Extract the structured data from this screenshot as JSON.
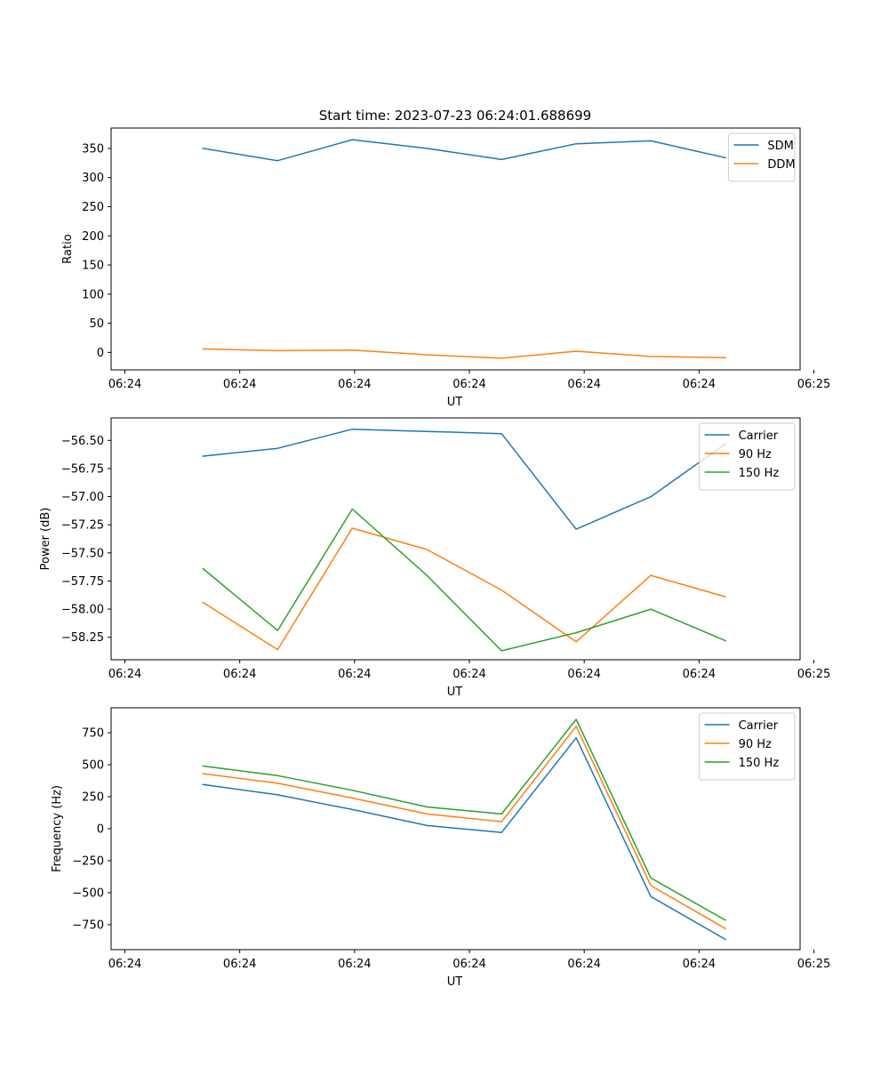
{
  "figure_title": "Start time: 2023-07-23 06:24:01.688699",
  "chart_data": [
    {
      "type": "line",
      "title": "Start time: 2023-07-23 06:24:01.688699",
      "xlabel": "UT",
      "ylabel": "Ratio",
      "x": [
        1.8,
        2.45,
        3.1,
        3.75,
        4.4,
        5.05,
        5.7,
        6.35
      ],
      "xlim": [
        1.0,
        7.0
      ],
      "x_ticks": [
        1.12,
        2.12,
        3.12,
        4.12,
        5.12,
        6.12,
        7.12
      ],
      "x_tick_labels": [
        "06:24",
        "06:24",
        "06:24",
        "06:24",
        "06:24",
        "06:24",
        "06:25"
      ],
      "ylim": [
        -30,
        385
      ],
      "y_ticks": [
        0,
        50,
        100,
        150,
        200,
        250,
        300,
        350
      ],
      "y_tick_labels": [
        "0",
        "50",
        "100",
        "150",
        "200",
        "250",
        "300",
        "350"
      ],
      "legend_position": "top-right",
      "series": [
        {
          "name": "SDM",
          "color": "#1f77b4",
          "values": [
            350,
            329,
            365,
            350,
            331,
            358,
            363,
            334
          ]
        },
        {
          "name": "DDM",
          "color": "#ff7f0e",
          "values": [
            6,
            3,
            4,
            -4,
            -10,
            2,
            -7,
            -9
          ]
        }
      ]
    },
    {
      "type": "line",
      "title": "",
      "xlabel": "UT",
      "ylabel": "Power (dB)",
      "x": [
        1.8,
        2.45,
        3.1,
        3.75,
        4.4,
        5.05,
        5.7,
        6.35
      ],
      "xlim": [
        1.0,
        7.0
      ],
      "x_ticks": [
        1.12,
        2.12,
        3.12,
        4.12,
        5.12,
        6.12,
        7.12
      ],
      "x_tick_labels": [
        "06:24",
        "06:24",
        "06:24",
        "06:24",
        "06:24",
        "06:24",
        "06:25"
      ],
      "ylim": [
        -58.45,
        -56.3
      ],
      "y_ticks": [
        -58.25,
        -58.0,
        -57.75,
        -57.5,
        -57.25,
        -57.0,
        -56.75,
        -56.5
      ],
      "y_tick_labels": [
        "−58.25",
        "−58.00",
        "−57.75",
        "−57.50",
        "−57.25",
        "−57.00",
        "−56.75",
        "−56.50"
      ],
      "legend_position": "top-right",
      "series": [
        {
          "name": "Carrier",
          "color": "#1f77b4",
          "values": [
            -56.64,
            -56.57,
            -56.4,
            -56.42,
            -56.44,
            -57.29,
            -57.0,
            -56.53
          ]
        },
        {
          "name": "90 Hz",
          "color": "#ff7f0e",
          "values": [
            -57.94,
            -58.36,
            -57.28,
            -57.47,
            -57.83,
            -58.29,
            -57.7,
            -57.89
          ]
        },
        {
          "name": "150 Hz",
          "color": "#2ca02c",
          "values": [
            -57.64,
            -58.19,
            -57.11,
            -57.7,
            -58.37,
            -58.21,
            -58.0,
            -58.28
          ]
        }
      ]
    },
    {
      "type": "line",
      "title": "",
      "xlabel": "UT",
      "ylabel": "Frequency (Hz)",
      "x": [
        1.8,
        2.45,
        3.1,
        3.75,
        4.4,
        5.05,
        5.7,
        6.35
      ],
      "xlim": [
        1.0,
        7.0
      ],
      "x_ticks": [
        1.12,
        2.12,
        3.12,
        4.12,
        5.12,
        6.12,
        7.12
      ],
      "x_tick_labels": [
        "06:24",
        "06:24",
        "06:24",
        "06:24",
        "06:24",
        "06:24",
        "06:25"
      ],
      "ylim": [
        -945,
        945
      ],
      "y_ticks": [
        -750,
        -500,
        -250,
        0,
        250,
        500,
        750
      ],
      "y_tick_labels": [
        "−750",
        "−500",
        "−250",
        "0",
        "250",
        "500",
        "750"
      ],
      "legend_position": "top-right",
      "series": [
        {
          "name": "Carrier",
          "color": "#1f77b4",
          "values": [
            345,
            265,
            150,
            25,
            -30,
            710,
            -530,
            -865
          ]
        },
        {
          "name": "90 Hz",
          "color": "#ff7f0e",
          "values": [
            430,
            355,
            240,
            115,
            55,
            800,
            -445,
            -780
          ]
        },
        {
          "name": "150 Hz",
          "color": "#2ca02c",
          "values": [
            490,
            415,
            300,
            170,
            115,
            855,
            -385,
            -715
          ]
        }
      ]
    }
  ]
}
